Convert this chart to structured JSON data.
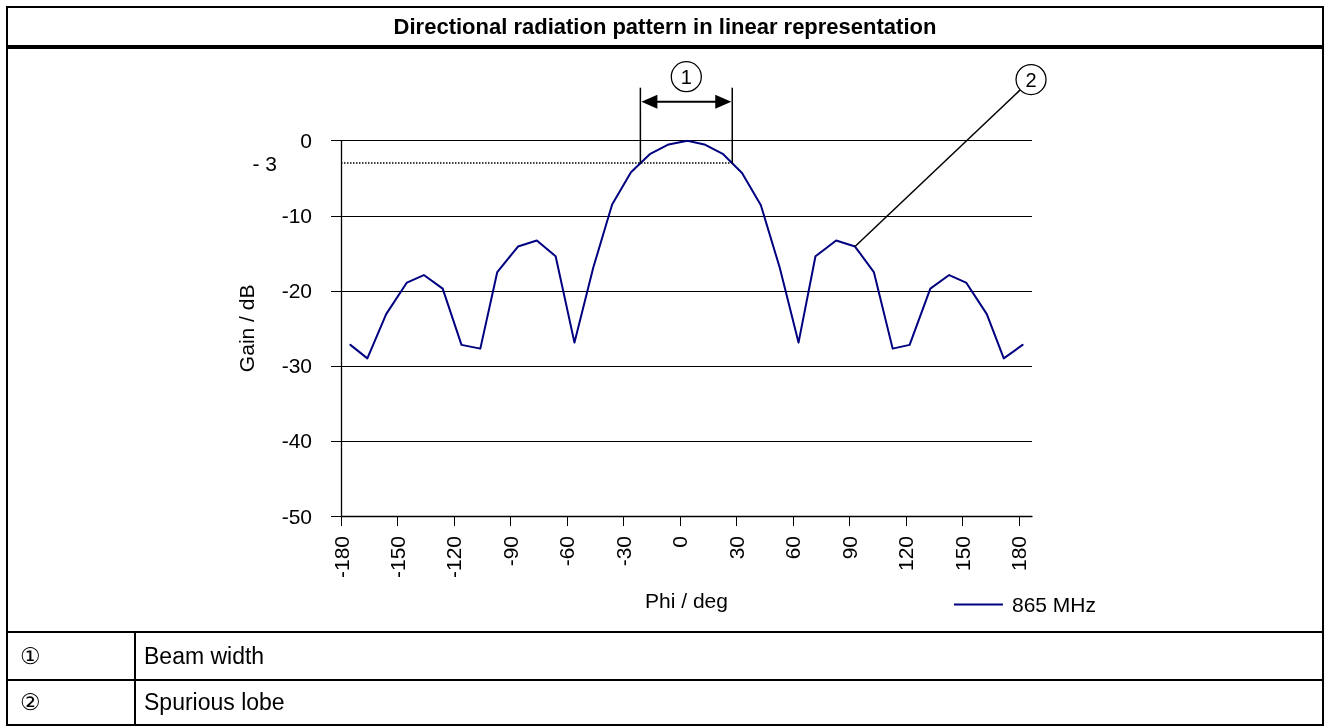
{
  "chart_data": {
    "type": "line",
    "title": "Directional radiation pattern in linear representation",
    "xlabel": "Phi / deg",
    "ylabel": "Gain / dB",
    "x": [
      -175,
      -166,
      -156,
      -145,
      -136,
      -126,
      -116,
      -106,
      -97,
      -86,
      -76,
      -66,
      -56,
      -46,
      -36,
      -26,
      -16,
      -6,
      4,
      13,
      23,
      33,
      43,
      53,
      63,
      72,
      83,
      93,
      103,
      113,
      122,
      133,
      143,
      152,
      163,
      172,
      182
    ],
    "series": [
      {
        "name": "865 MHz",
        "color": "#000080",
        "values": [
          -27.2,
          -29.0,
          -23.1,
          -18.9,
          -17.9,
          -19.7,
          -27.2,
          -27.7,
          -17.5,
          -14.1,
          -13.3,
          -15.4,
          -26.9,
          -16.9,
          -8.5,
          -4.2,
          -1.8,
          -0.5,
          0,
          -0.5,
          -1.8,
          -4.3,
          -8.6,
          -16.9,
          -26.9,
          -15.4,
          -13.3,
          -14.1,
          -17.5,
          -27.7,
          -27.2,
          -19.7,
          -17.9,
          -18.9,
          -23.1,
          -29.0,
          -27.2
        ]
      }
    ],
    "xlim": [
      -180,
      187
    ],
    "xticks": [
      -180,
      -150,
      -120,
      -90,
      -60,
      -30,
      0,
      30,
      60,
      90,
      120,
      150,
      180
    ],
    "ylim": [
      -50,
      0
    ],
    "yticks": [
      -50,
      -40,
      -30,
      -20,
      -10,
      0
    ],
    "grid": "y",
    "legend": "bottom right",
    "marker": "none",
    "line_style": "solid",
    "ref_lines": [
      {
        "axis": "y",
        "value": -3,
        "label": "- 3",
        "color": "#000000",
        "line_style": "dotted"
      }
    ],
    "annotations": [
      "1",
      {
        "text": "2",
        "x": 93,
        "y": -14.1
      },
      "①",
      "Beam width",
      "②",
      "Spurious lobe"
    ]
  }
}
